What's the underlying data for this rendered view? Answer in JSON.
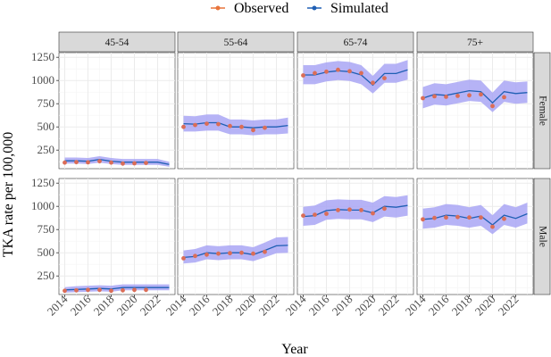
{
  "chart_data": {
    "type": "line",
    "facet_cols": [
      "45-54",
      "55-64",
      "65-74",
      "75+"
    ],
    "facet_rows": [
      "Female",
      "Male"
    ],
    "xlabel": "Year",
    "ylabel": "TKA rate per 100,000",
    "xlim": [
      2013.5,
      2023.5
    ],
    "x_ticks": [
      2014,
      2016,
      2018,
      2020,
      2022
    ],
    "ylim": [
      50,
      1300
    ],
    "y_ticks": [
      250,
      500,
      750,
      1000,
      1250
    ],
    "grid": true,
    "legend": {
      "placement": "top",
      "entries": [
        {
          "name": "Observed",
          "color": "#E8743B"
        },
        {
          "name": "Simulated",
          "color": "#1F5FB4"
        }
      ]
    },
    "colors": {
      "observed": "#E8743B",
      "observed_dot": "#DB6D57",
      "simulated_line": "#1F5FB4",
      "simulated_band": "#A9A6F5",
      "panel_bg": "#FFFFFF",
      "grid": "#EBEBEB",
      "strip_bg": "#D9D9D9"
    },
    "panels": [
      {
        "col": "45-54",
        "row": "Female",
        "observed": {
          "x": [
            2014,
            2015,
            2016,
            2017,
            2018,
            2019,
            2020,
            2021
          ],
          "y": [
            115,
            120,
            118,
            130,
            115,
            105,
            108,
            112
          ]
        },
        "simulated": {
          "x": [
            2014,
            2015,
            2016,
            2017,
            2018,
            2019,
            2020,
            2021,
            2022,
            2023
          ],
          "y": [
            135,
            135,
            130,
            150,
            130,
            120,
            120,
            120,
            120,
            95
          ]
        },
        "band_low": [
          105,
          105,
          100,
          115,
          100,
          90,
          90,
          90,
          90,
          70
        ],
        "band_high": [
          170,
          170,
          165,
          185,
          165,
          155,
          155,
          155,
          155,
          125
        ]
      },
      {
        "col": "55-64",
        "row": "Female",
        "observed": {
          "x": [
            2014,
            2015,
            2016,
            2017,
            2018,
            2019,
            2020,
            2021
          ],
          "y": [
            500,
            520,
            535,
            530,
            510,
            500,
            465,
            490
          ]
        },
        "simulated": {
          "x": [
            2014,
            2015,
            2016,
            2017,
            2018,
            2019,
            2020,
            2021,
            2022,
            2023
          ],
          "y": [
            535,
            530,
            545,
            545,
            500,
            500,
            490,
            500,
            500,
            515
          ]
        },
        "band_low": [
          450,
          450,
          460,
          460,
          420,
          420,
          410,
          420,
          420,
          430
        ],
        "band_high": [
          620,
          615,
          635,
          635,
          580,
          580,
          570,
          580,
          580,
          600
        ]
      },
      {
        "col": "65-74",
        "row": "Female",
        "observed": {
          "x": [
            2014,
            2015,
            2016,
            2017,
            2018,
            2019,
            2020,
            2021
          ],
          "y": [
            1055,
            1080,
            1095,
            1115,
            1100,
            1080,
            975,
            1025
          ]
        },
        "simulated": {
          "x": [
            2014,
            2015,
            2016,
            2017,
            2018,
            2019,
            2020,
            2021,
            2022,
            2023
          ],
          "y": [
            1060,
            1060,
            1090,
            1105,
            1095,
            1060,
            950,
            1075,
            1075,
            1115
          ]
        },
        "band_low": [
          960,
          960,
          990,
          1005,
          995,
          960,
          860,
          975,
          975,
          1010
        ],
        "band_high": [
          1165,
          1165,
          1195,
          1210,
          1200,
          1165,
          1050,
          1180,
          1180,
          1220
        ]
      },
      {
        "col": "75+",
        "row": "Female",
        "observed": {
          "x": [
            2014,
            2015,
            2016,
            2017,
            2018,
            2019,
            2020,
            2021
          ],
          "y": [
            810,
            830,
            825,
            835,
            840,
            850,
            725,
            820
          ]
        },
        "simulated": {
          "x": [
            2014,
            2015,
            2016,
            2017,
            2018,
            2019,
            2020,
            2021,
            2022,
            2023
          ],
          "y": [
            810,
            850,
            840,
            865,
            890,
            880,
            760,
            880,
            860,
            870
          ]
        },
        "band_low": [
          700,
          740,
          730,
          755,
          780,
          770,
          660,
          770,
          750,
          760
        ],
        "band_high": [
          930,
          970,
          960,
          985,
          1010,
          1000,
          870,
          1000,
          980,
          990
        ]
      },
      {
        "col": "45-54",
        "row": "Male",
        "observed": {
          "x": [
            2014,
            2015,
            2016,
            2017,
            2018,
            2019,
            2020,
            2021
          ],
          "y": [
            90,
            95,
            100,
            100,
            90,
            95,
            100,
            100
          ]
        },
        "simulated": {
          "x": [
            2014,
            2015,
            2016,
            2017,
            2018,
            2019,
            2020,
            2021,
            2022,
            2023
          ],
          "y": [
            100,
            105,
            110,
            115,
            110,
            125,
            125,
            125,
            125,
            125
          ]
        },
        "band_low": [
          70,
          75,
          80,
          85,
          80,
          95,
          95,
          95,
          95,
          95
        ],
        "band_high": [
          130,
          140,
          145,
          150,
          145,
          160,
          160,
          160,
          160,
          160
        ]
      },
      {
        "col": "55-64",
        "row": "Male",
        "observed": {
          "x": [
            2014,
            2015,
            2016,
            2017,
            2018,
            2019,
            2020,
            2021
          ],
          "y": [
            440,
            465,
            480,
            490,
            495,
            500,
            490,
            510
          ]
        },
        "simulated": {
          "x": [
            2014,
            2015,
            2016,
            2017,
            2018,
            2019,
            2020,
            2021,
            2022,
            2023
          ],
          "y": [
            450,
            460,
            500,
            490,
            500,
            500,
            480,
            525,
            575,
            580
          ]
        },
        "band_low": [
          385,
          395,
          430,
          420,
          430,
          430,
          410,
          450,
          495,
          500
        ],
        "band_high": [
          525,
          540,
          580,
          570,
          580,
          580,
          560,
          610,
          665,
          670
        ]
      },
      {
        "col": "65-74",
        "row": "Male",
        "observed": {
          "x": [
            2014,
            2015,
            2016,
            2017,
            2018,
            2019,
            2020,
            2021
          ],
          "y": [
            900,
            910,
            920,
            960,
            965,
            960,
            925,
            975
          ]
        },
        "simulated": {
          "x": [
            2014,
            2015,
            2016,
            2017,
            2018,
            2019,
            2020,
            2021,
            2022,
            2023
          ],
          "y": [
            890,
            900,
            955,
            965,
            960,
            960,
            930,
            1000,
            990,
            1010
          ]
        },
        "band_low": [
          790,
          800,
          855,
          865,
          860,
          860,
          830,
          890,
          880,
          900
        ],
        "band_high": [
          995,
          1010,
          1065,
          1075,
          1070,
          1070,
          1040,
          1110,
          1100,
          1120
        ]
      },
      {
        "col": "75+",
        "row": "Male",
        "observed": {
          "x": [
            2014,
            2015,
            2016,
            2017,
            2018,
            2019,
            2020,
            2021
          ],
          "y": [
            860,
            875,
            880,
            885,
            880,
            880,
            780,
            865
          ]
        },
        "simulated": {
          "x": [
            2014,
            2015,
            2016,
            2017,
            2018,
            2019,
            2020,
            2021,
            2022,
            2023
          ],
          "y": [
            860,
            870,
            905,
            895,
            870,
            895,
            800,
            905,
            870,
            920
          ]
        },
        "band_low": [
          760,
          770,
          800,
          790,
          770,
          790,
          700,
          800,
          770,
          815
        ],
        "band_high": [
          975,
          990,
          1025,
          1015,
          990,
          1015,
          905,
          1025,
          990,
          1040
        ]
      }
    ]
  }
}
